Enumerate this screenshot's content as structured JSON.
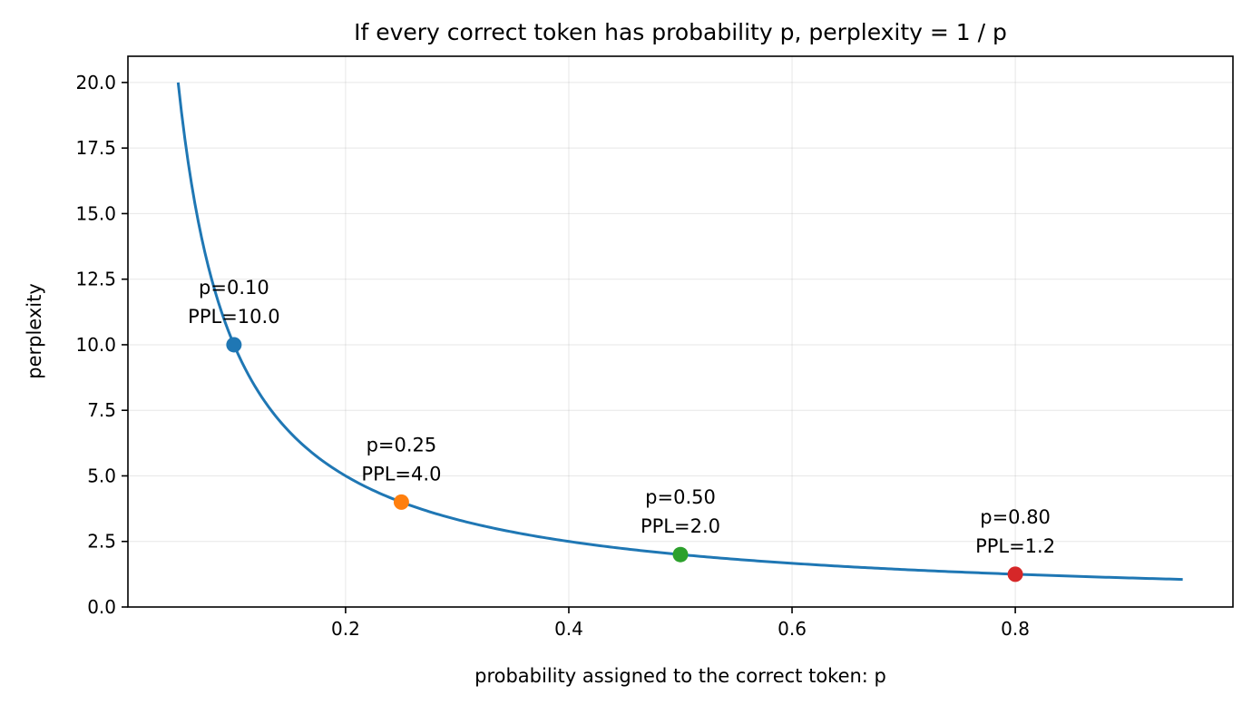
{
  "chart_data": {
    "type": "line",
    "title": "If every correct token has probability p, perplexity = 1 / p",
    "xlabel": "probability assigned to the correct token: p",
    "ylabel": "perplexity",
    "xlim": [
      0.005,
      0.995
    ],
    "ylim": [
      0,
      21
    ],
    "x_ticks": [
      0.2,
      0.4,
      0.6,
      0.8
    ],
    "x_tick_labels": [
      "0.2",
      "0.4",
      "0.6",
      "0.8"
    ],
    "y_ticks": [
      0,
      2.5,
      5,
      7.5,
      10,
      12.5,
      15,
      17.5,
      20
    ],
    "y_tick_labels": [
      "0.0",
      "2.5",
      "5.0",
      "7.5",
      "10.0",
      "12.5",
      "15.0",
      "17.5",
      "20.0"
    ],
    "grid": true,
    "curve": {
      "function": "1/p",
      "x_range": [
        0.05,
        0.95
      ],
      "color": "#1f77b4"
    },
    "points": [
      {
        "x": 0.1,
        "y": 10.0,
        "color": "#1f77b4",
        "label_lines": [
          "p=0.10",
          "PPL=10.0"
        ]
      },
      {
        "x": 0.25,
        "y": 4.0,
        "color": "#ff7f0e",
        "label_lines": [
          "p=0.25",
          "PPL=4.0"
        ]
      },
      {
        "x": 0.5,
        "y": 2.0,
        "color": "#2ca02c",
        "label_lines": [
          "p=0.50",
          "PPL=2.0"
        ]
      },
      {
        "x": 0.8,
        "y": 1.25,
        "color": "#d62728",
        "label_lines": [
          "p=0.80",
          "PPL=1.2"
        ]
      }
    ]
  }
}
